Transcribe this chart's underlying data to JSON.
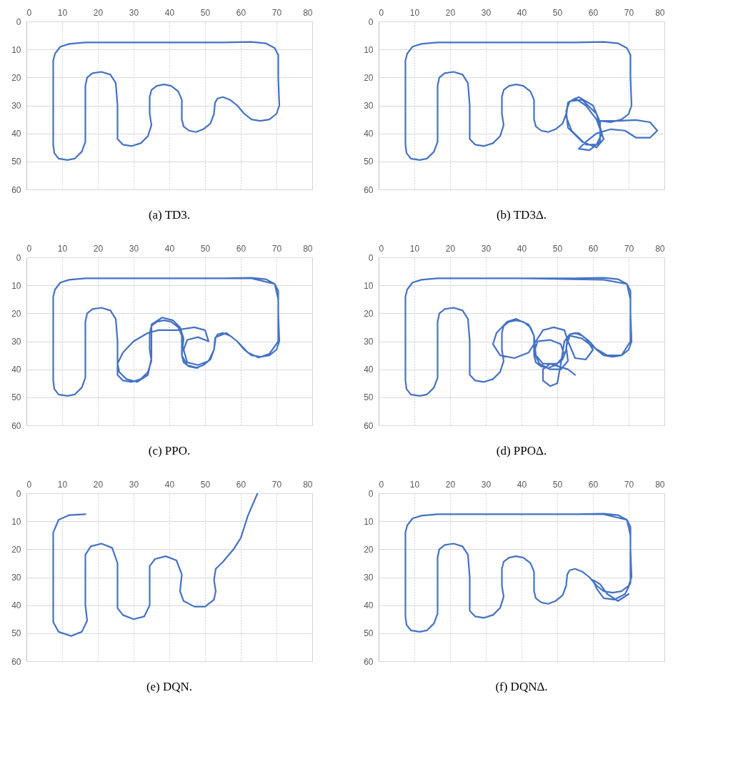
{
  "chart_data": [
    {
      "type": "line",
      "title": "(a) TD3.",
      "xlim": [
        0,
        80
      ],
      "ylim": [
        60,
        0
      ],
      "xticks": [
        0,
        10,
        20,
        30,
        40,
        50,
        60,
        70,
        80
      ],
      "yticks": [
        0,
        10,
        20,
        30,
        40,
        50,
        60
      ],
      "grid": true,
      "series": [
        {
          "color": "#4472c4",
          "x": [
            16.5,
            30,
            45,
            55,
            63,
            67,
            69.5,
            70.5,
            70.5,
            70.8,
            70,
            68,
            65.5,
            63,
            61,
            59,
            57,
            55,
            53.5,
            52.8,
            52.5,
            51.5,
            49.5,
            47.5,
            45.5,
            44,
            43.5,
            43.5,
            42.5,
            40.5,
            38.5,
            36.5,
            35,
            34.5,
            34.5,
            35,
            34,
            32,
            29.5,
            27,
            25.5,
            25.5,
            25.5,
            25,
            23.5,
            21,
            18.5,
            17,
            16.5,
            16.5,
            16.5,
            15.5,
            13.5,
            11.5,
            9,
            7.8,
            7.5,
            7.5,
            7.5,
            8,
            9.5,
            12,
            16.5,
            21
          ],
          "values": [
            7.5,
            7.5,
            7.5,
            7.5,
            7.3,
            7.8,
            9.5,
            12,
            20,
            30,
            33,
            35,
            35.5,
            35,
            33,
            30,
            28,
            27,
            27.5,
            29,
            33,
            36.5,
            38.5,
            39.5,
            39,
            37.5,
            35,
            28,
            25,
            23,
            22.5,
            23,
            24.5,
            27,
            33,
            37,
            41,
            43.5,
            44.5,
            44,
            42,
            38,
            30,
            22,
            19,
            18,
            18.5,
            20,
            23,
            35,
            43,
            46.5,
            49,
            49.5,
            49,
            47,
            44,
            30,
            14,
            11.5,
            9,
            8,
            7.5,
            7.5
          ]
        }
      ]
    },
    {
      "type": "line",
      "title": "(b) TD3Δ.",
      "xlim": [
        0,
        80
      ],
      "ylim": [
        60,
        0
      ],
      "xticks": [
        0,
        10,
        20,
        30,
        40,
        50,
        60,
        70,
        80
      ],
      "yticks": [
        0,
        10,
        20,
        30,
        40,
        50,
        60
      ],
      "grid": true,
      "series": [
        {
          "color": "#4472c4",
          "x": [
            16.5,
            30,
            45,
            55,
            63,
            67,
            69.5,
            70.5,
            70.5,
            70.8,
            70,
            68,
            65,
            62,
            67,
            72,
            76,
            78,
            76,
            72,
            69,
            65,
            61,
            58,
            56,
            59,
            62,
            62,
            60,
            56,
            53,
            52.5,
            54,
            58,
            61,
            62.5,
            61,
            57,
            53.5,
            52.5,
            53,
            57,
            61,
            63,
            61,
            58,
            55,
            53,
            52.5,
            51.5,
            49.5,
            47.5,
            45.5,
            44,
            43.5,
            43.5,
            42.5,
            40.5,
            38.5,
            36.5,
            35,
            34.5,
            34.5,
            35,
            34,
            32,
            29.5,
            27,
            25.5,
            25.5,
            25.5,
            25,
            23.5,
            21,
            18.5,
            17,
            16.5,
            16.5,
            16.5,
            15.5,
            13.5,
            11.5,
            9,
            7.8,
            7.5,
            7.5,
            7.5,
            8,
            9.5,
            12,
            16.5,
            21
          ],
          "values": [
            7.5,
            7.5,
            7.5,
            7.5,
            7.3,
            7.8,
            9.5,
            12,
            20,
            30,
            33,
            35,
            36,
            35.5,
            35.5,
            35.2,
            36,
            39,
            41.5,
            41.5,
            39,
            38.5,
            40,
            43,
            45.5,
            46,
            43,
            36,
            30,
            27,
            29,
            34,
            39,
            44,
            44,
            40,
            33,
            28,
            28.5,
            32,
            38,
            43,
            45,
            42,
            35,
            30,
            27.5,
            29,
            33,
            36.5,
            38.5,
            39.5,
            39,
            37.5,
            35,
            28,
            25,
            23,
            22.5,
            23,
            24.5,
            27,
            33,
            37,
            41,
            43.5,
            44.5,
            44,
            42,
            38,
            30,
            22,
            19,
            18,
            18.5,
            20,
            23,
            35,
            43,
            46.5,
            49,
            49.5,
            49,
            47,
            44,
            30,
            14,
            11.5,
            9,
            8,
            7.5,
            7.5
          ]
        }
      ]
    },
    {
      "type": "line",
      "title": "(c) PPO.",
      "xlim": [
        0,
        80
      ],
      "ylim": [
        60,
        0
      ],
      "xticks": [
        0,
        10,
        20,
        30,
        40,
        50,
        60,
        70,
        80
      ],
      "yticks": [
        0,
        10,
        20,
        30,
        40,
        50,
        60
      ],
      "grid": true,
      "series": [
        {
          "color": "#4472c4",
          "x": [
            16.5,
            30,
            45,
            55,
            63,
            67,
            69.5,
            70.5,
            70.5,
            70.8,
            70,
            68,
            65.5,
            63,
            61,
            59,
            57,
            55,
            53.5,
            52.8,
            52.5,
            51.5,
            49.5,
            47.5,
            45.5,
            44,
            43.5,
            43.5,
            42.5,
            40.5,
            38.5,
            36.5,
            35,
            34.5,
            34.5,
            35,
            34,
            32,
            29.5,
            27,
            25.5,
            25.5,
            25.5,
            25,
            23.5,
            21,
            18.5,
            17,
            16.5,
            16.5,
            16.5,
            15.5,
            13.5,
            11.5,
            9,
            7.8,
            7.5,
            7.5,
            7.5,
            8,
            9.5,
            12,
            16.5,
            40,
            63,
            69.5,
            70.5,
            70.5,
            68,
            65,
            62,
            59,
            56,
            53,
            52.5,
            51,
            48,
            45,
            44,
            45,
            48,
            51,
            50,
            47,
            42,
            37,
            34,
            30,
            27,
            25.5,
            26,
            28,
            31,
            34,
            35,
            35,
            38,
            41,
            43,
            44,
            43.5,
            45,
            48
          ],
          "values": [
            7.5,
            7.5,
            7.5,
            7.5,
            7.3,
            7.8,
            9.5,
            12,
            20,
            30,
            33,
            35,
            35.5,
            35,
            33,
            30,
            28,
            27,
            27.5,
            29,
            33,
            36.5,
            38.5,
            39.5,
            39,
            37.5,
            35,
            28,
            25,
            23,
            22.5,
            23,
            24.5,
            27,
            33,
            37,
            41,
            43.5,
            44.5,
            44,
            42,
            38,
            30,
            22,
            19,
            18,
            18.5,
            20,
            23,
            35,
            43,
            46.5,
            49,
            49.5,
            49,
            47,
            44,
            30,
            14,
            11.5,
            9,
            8,
            7.5,
            7.5,
            7.5,
            9.5,
            15,
            30,
            34.5,
            35.8,
            34,
            30,
            27,
            28.5,
            33,
            37,
            38.5,
            37.5,
            33,
            29.5,
            28.5,
            30,
            26,
            25,
            26,
            26,
            27,
            30,
            34,
            38,
            41,
            43.5,
            44.5,
            42,
            36,
            24,
            21.5,
            22.5,
            25,
            29,
            35,
            38.5,
            39.5
          ]
        }
      ]
    },
    {
      "type": "line",
      "title": "(d) PPOΔ.",
      "xlim": [
        0,
        80
      ],
      "ylim": [
        60,
        0
      ],
      "xticks": [
        0,
        10,
        20,
        30,
        40,
        50,
        60,
        70,
        80
      ],
      "yticks": [
        0,
        10,
        20,
        30,
        40,
        50,
        60
      ],
      "grid": true,
      "series": [
        {
          "color": "#4472c4",
          "x": [
            16.5,
            30,
            45,
            55,
            63,
            67,
            69.5,
            70.5,
            70.5,
            70.8,
            70,
            68,
            65.5,
            63,
            61,
            59,
            57,
            55,
            53.5,
            52.8,
            52.5,
            51.5,
            49.5,
            47.5,
            45.5,
            44,
            43.5,
            43.5,
            42.5,
            40.5,
            38.5,
            36.5,
            35,
            34.5,
            34.5,
            35,
            34,
            32,
            29.5,
            27,
            25.5,
            25.5,
            25.5,
            25,
            23.5,
            21,
            18.5,
            17,
            16.5,
            16.5,
            16.5,
            15.5,
            13.5,
            11.5,
            9,
            7.8,
            7.5,
            7.5,
            7.5,
            8,
            9.5,
            12,
            16.5,
            40,
            63,
            69.5,
            70.5,
            70.5,
            68,
            64,
            60,
            57,
            53.5,
            52.5,
            53,
            51,
            48,
            45,
            43.5,
            44.5,
            48,
            51,
            52,
            50,
            46,
            44,
            43.5,
            42,
            38.5,
            36,
            33,
            32,
            34,
            38,
            42,
            44,
            46,
            49,
            52,
            53,
            55,
            58,
            60,
            58,
            56,
            53.5,
            52,
            51,
            50,
            48,
            46,
            46,
            48,
            53,
            55
          ],
          "values": [
            7.5,
            7.5,
            7.5,
            7.5,
            7.3,
            7.8,
            9.5,
            12,
            20,
            30,
            33,
            35,
            35.5,
            35,
            33,
            30,
            28,
            27,
            27.5,
            29,
            33,
            36.5,
            38.5,
            39.5,
            39,
            37.5,
            35,
            28,
            25,
            23,
            22.5,
            23,
            24.5,
            27,
            33,
            37,
            41,
            43.5,
            44.5,
            44,
            42,
            38,
            30,
            22,
            19,
            18,
            18.5,
            20,
            23,
            35,
            43,
            46.5,
            49,
            49.5,
            49,
            47,
            44,
            30,
            14,
            11.5,
            9,
            8,
            7.5,
            7.5,
            8,
            9.5,
            15,
            30,
            35,
            35,
            32,
            29,
            28,
            32,
            37,
            40,
            40,
            38,
            34,
            30,
            29.5,
            31,
            35,
            38,
            38,
            35,
            28,
            24,
            22,
            23,
            27,
            31,
            35,
            36,
            34,
            30,
            26,
            25,
            26,
            30,
            36,
            36.5,
            33,
            29,
            27,
            27.5,
            30,
            38,
            45,
            46,
            44,
            40,
            38,
            40,
            42
          ]
        }
      ]
    },
    {
      "type": "line",
      "title": "(e) DQN.",
      "xlim": [
        0,
        80
      ],
      "ylim": [
        60,
        0
      ],
      "xticks": [
        0,
        10,
        20,
        30,
        40,
        50,
        60,
        70,
        80
      ],
      "yticks": [
        0,
        10,
        20,
        30,
        40,
        50,
        60
      ],
      "grid": true,
      "series": [
        {
          "color": "#4472c4",
          "x": [
            16.5,
            12,
            9,
            7.5,
            7.5,
            7.5,
            9,
            12.5,
            15.5,
            17,
            16.5,
            16.5,
            18,
            21,
            24,
            25.5,
            25.5,
            27,
            30,
            33,
            34.5,
            34.5,
            36,
            39,
            42,
            43.5,
            43,
            44,
            47,
            50,
            52.5,
            53,
            52.5,
            53,
            55,
            58,
            60,
            61,
            62,
            64.7
          ],
          "values": [
            7.5,
            7.8,
            9.5,
            14,
            30,
            46,
            49.5,
            51,
            49.5,
            45.5,
            40,
            22,
            19,
            18,
            19.5,
            25,
            41,
            43.5,
            45,
            44,
            40,
            26,
            23.5,
            22.5,
            24,
            29,
            35,
            38.5,
            40.5,
            40.5,
            38,
            35,
            31,
            27,
            24.5,
            20,
            16,
            12,
            8,
            0
          ]
        }
      ]
    },
    {
      "type": "line",
      "title": "(f) DQNΔ.",
      "xlim": [
        0,
        80
      ],
      "ylim": [
        60,
        0
      ],
      "xticks": [
        0,
        10,
        20,
        30,
        40,
        50,
        60,
        70,
        80
      ],
      "yticks": [
        0,
        10,
        20,
        30,
        40,
        50,
        60
      ],
      "grid": true,
      "series": [
        {
          "color": "#4472c4",
          "x": [
            16.5,
            30,
            45,
            55,
            63,
            67,
            69.5,
            70.5,
            70.5,
            70.8,
            70,
            68,
            65.5,
            63,
            61,
            59,
            57,
            55,
            53.5,
            52.8,
            52.5,
            51.5,
            49.5,
            47.5,
            45.5,
            44,
            43.5,
            43.5,
            42.5,
            40.5,
            38.5,
            36.5,
            35,
            34.5,
            34.5,
            35,
            34,
            32,
            29.5,
            27,
            25.5,
            25.5,
            25.5,
            25,
            23.5,
            21,
            18.5,
            17,
            16.5,
            16.5,
            16.5,
            15.5,
            13.5,
            11.5,
            9,
            7.8,
            7.5,
            7.5,
            7.5,
            8,
            9.5,
            12,
            16.5,
            40,
            63,
            69.5,
            70.5,
            70.5,
            69,
            66,
            63,
            61,
            60,
            62,
            64,
            67,
            70
          ],
          "values": [
            7.5,
            7.5,
            7.5,
            7.5,
            7.3,
            7.8,
            9.5,
            12,
            20,
            30,
            33,
            35,
            35.5,
            35,
            33,
            30,
            28,
            27,
            27.5,
            29,
            33,
            36.5,
            38.5,
            39.5,
            39,
            37.5,
            35,
            28,
            25,
            23,
            22.5,
            23,
            24.5,
            27,
            33,
            37,
            41,
            43.5,
            44.5,
            44,
            42,
            38,
            30,
            22,
            19,
            18,
            18.5,
            20,
            23,
            35,
            43,
            46.5,
            49,
            49.5,
            49,
            47,
            44,
            30,
            14,
            11.5,
            9,
            8,
            7.5,
            7.5,
            7.5,
            9.5,
            15,
            32,
            36,
            38,
            37.5,
            34,
            31,
            32.5,
            36,
            38.5,
            36
          ]
        }
      ]
    }
  ]
}
